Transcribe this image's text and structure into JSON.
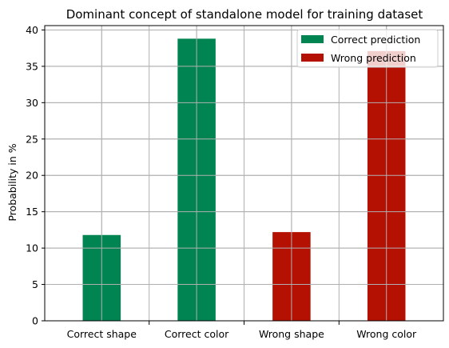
{
  "chart_data": {
    "type": "bar",
    "title": "Dominant concept of standalone model for training dataset",
    "xlabel": "",
    "ylabel": "Probability in %",
    "categories": [
      "Correct shape",
      "Correct color",
      "Wrong shape",
      "Wrong color"
    ],
    "yticks": [
      0,
      5,
      10,
      15,
      20,
      25,
      30,
      35,
      40
    ],
    "ylim": [
      0,
      40.6
    ],
    "grid": true,
    "legend_position": "top-right",
    "series": [
      {
        "name": "Correct prediction",
        "color": "#008552",
        "values": [
          11.8,
          38.8,
          null,
          null
        ]
      },
      {
        "name": "Wrong prediction",
        "color": "#b51103",
        "values": [
          null,
          null,
          12.2,
          37.1
        ]
      }
    ]
  }
}
